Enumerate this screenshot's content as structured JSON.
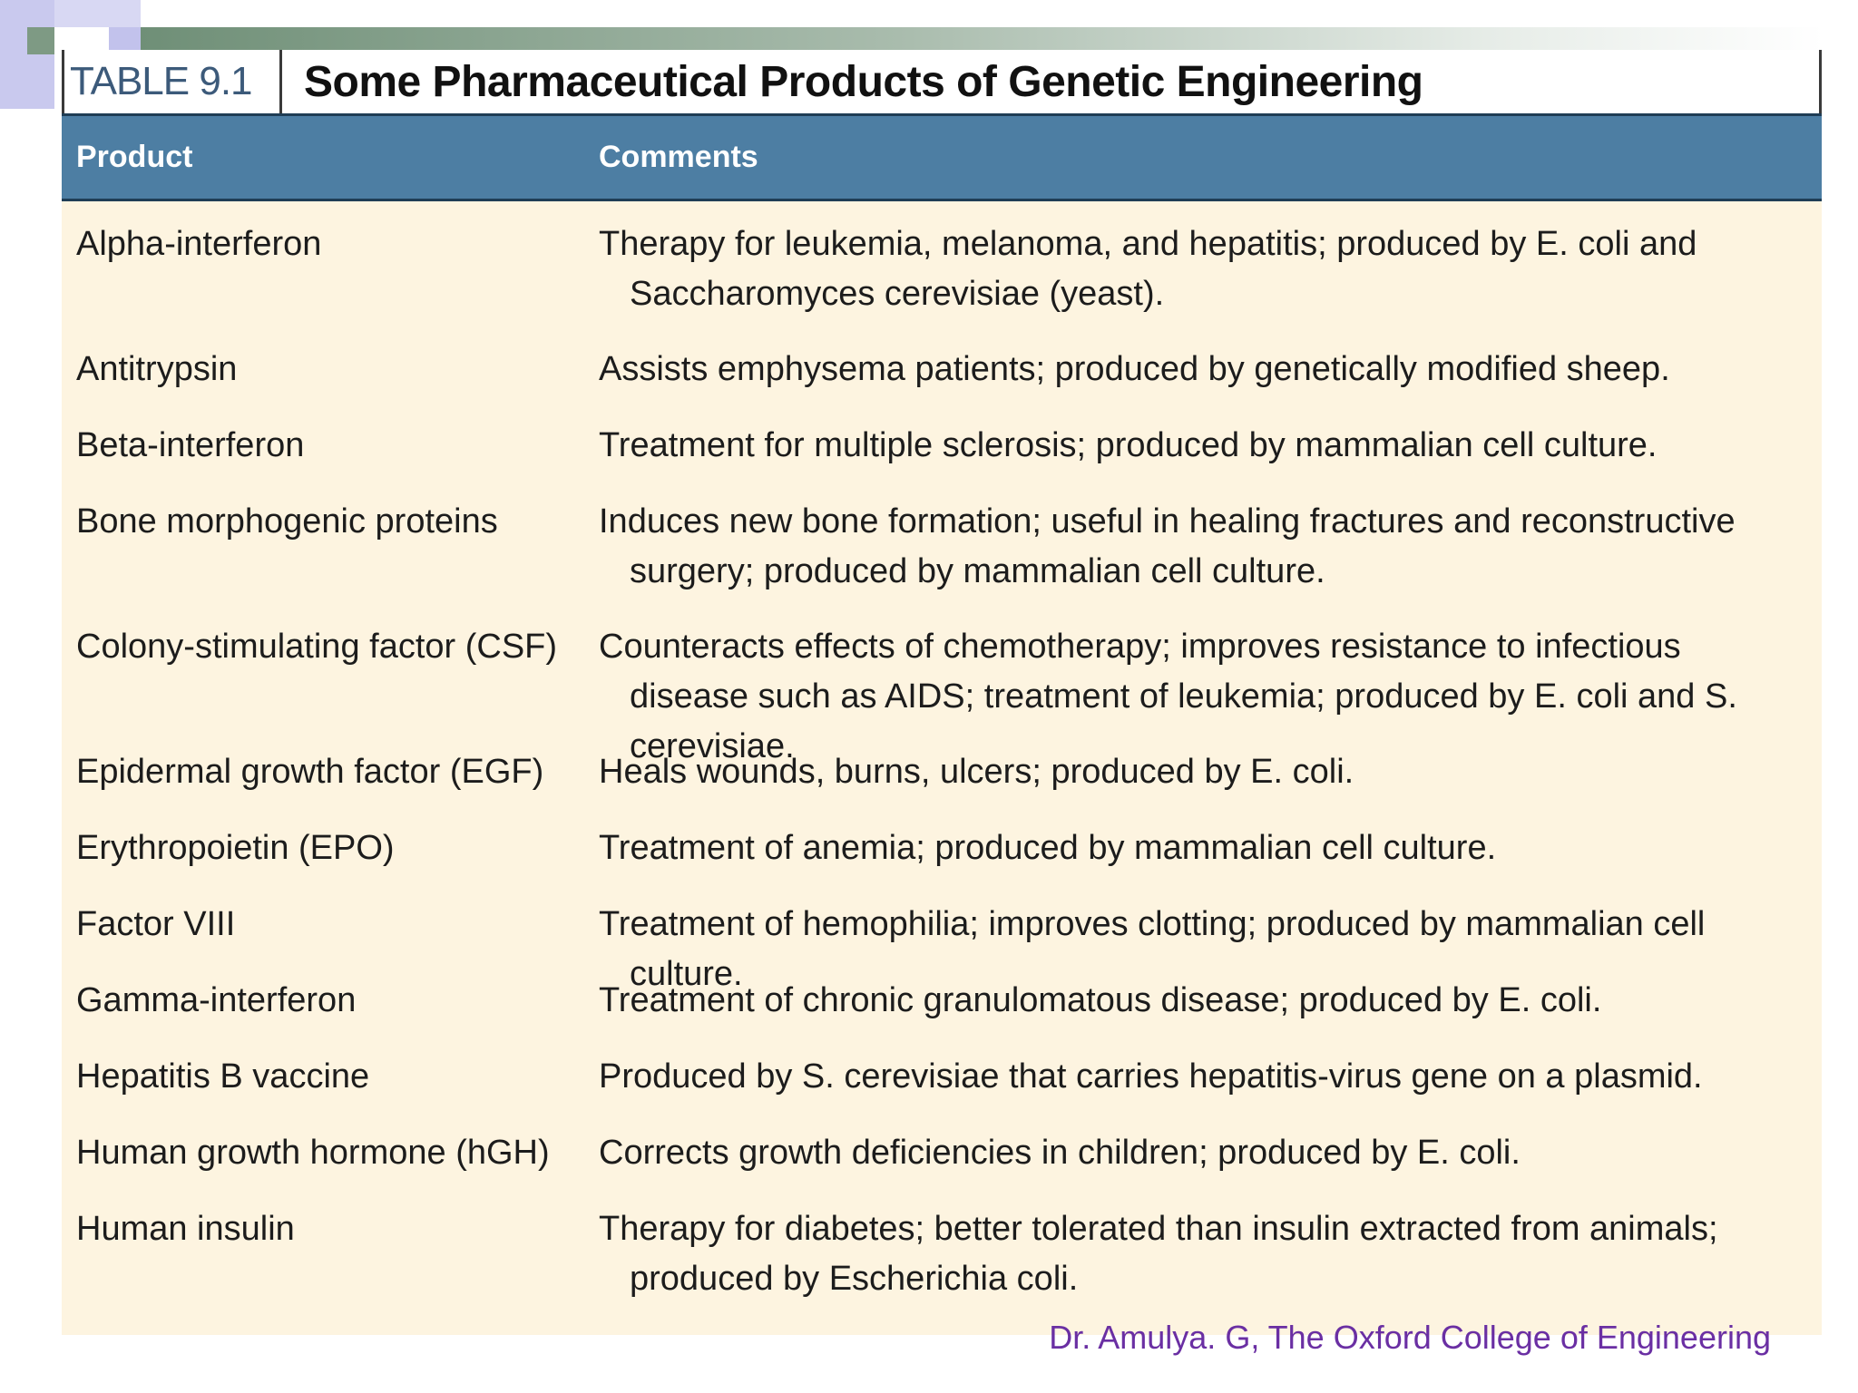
{
  "table": {
    "label": "TABLE 9.1",
    "title": "Some Pharmaceutical Products of Genetic Engineering",
    "columns": [
      "Product",
      "Comments"
    ],
    "rows": [
      {
        "product": "Alpha-interferon",
        "comments": "Therapy for leukemia, melanoma, and hepatitis; produced by E. coli and Saccharomyces cerevisiae (yeast)."
      },
      {
        "product": "Antitrypsin",
        "comments": "Assists emphysema patients; produced by genetically modified sheep."
      },
      {
        "product": "Beta-interferon",
        "comments": "Treatment for multiple sclerosis; produced by mammalian cell culture."
      },
      {
        "product": "Bone morphogenic proteins",
        "comments": "Induces new bone formation; useful in healing fractures and reconstructive surgery; produced by mammalian cell culture."
      },
      {
        "product": "Colony-stimulating factor (CSF)",
        "comments": "Counteracts effects of chemotherapy; improves resistance to infectious disease such as AIDS; treatment of leukemia; produced by E. coli and S. cerevisiae."
      },
      {
        "product": "Epidermal growth factor (EGF)",
        "comments": "Heals wounds, burns, ulcers; produced by E. coli."
      },
      {
        "product": "Erythropoietin (EPO)",
        "comments": "Treatment of anemia; produced by mammalian cell culture."
      },
      {
        "product": "Factor VIII",
        "comments": "Treatment of hemophilia; improves clotting; produced by mammalian cell culture."
      },
      {
        "product": "Gamma-interferon",
        "comments": "Treatment of chronic granulomatous disease; produced by E. coli."
      },
      {
        "product": "Hepatitis B vaccine",
        "comments": "Produced by S. cerevisiae that carries hepatitis-virus gene on a plasmid."
      },
      {
        "product": "Human growth hormone (hGH)",
        "comments": "Corrects growth deficiencies in children; produced by E. coli."
      },
      {
        "product": "Human insulin",
        "comments": "Therapy for diabetes; better tolerated than insulin extracted from animals; produced by Escherichia coli."
      }
    ]
  },
  "footer": {
    "credit": "Dr. Amulya. G, The Oxford College of Engineering"
  },
  "colors": {
    "header_bg": "#4d7ea3",
    "body_bg": "#fdf4e0",
    "footer_text": "#6a2fa3"
  }
}
